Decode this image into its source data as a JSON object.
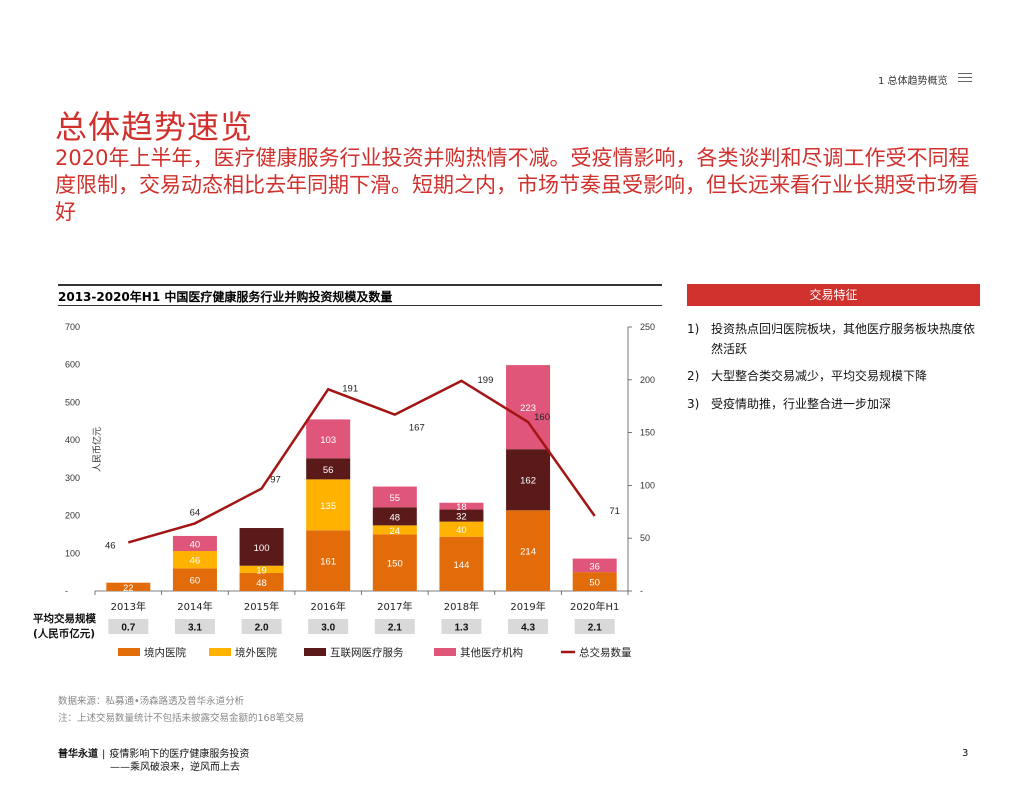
{
  "header": {
    "section": "1 总体趋势概览"
  },
  "title": "总体趋势速览",
  "subtitle": "2020年上半年，医疗健康服务行业投资并购热情不减。受疫情影响，各类谈判和尽调工作受不同程度限制，交易动态相比去年同期下滑。短期之内，市场节奏虽受影响，但长远来看行业长期受市场看好",
  "chart_data": {
    "type": "bar",
    "title": "2013-2020年H1 中国医疗健康服务行业并购投资规模及数量",
    "ylabel": "人民币亿元",
    "ylim": [
      0,
      700
    ],
    "y2lim": [
      0,
      250
    ],
    "y_ticks": [
      "-",
      "100",
      "200",
      "300",
      "400",
      "500",
      "600",
      "700"
    ],
    "y2_ticks": [
      "-",
      "50",
      "100",
      "150",
      "200",
      "250"
    ],
    "categories": [
      "2013年",
      "2014年",
      "2015年",
      "2016年",
      "2017年",
      "2018年",
      "2019年",
      "2020年H1"
    ],
    "series": [
      {
        "name": "境内医院",
        "color": "#e36c0a",
        "values": [
          22,
          60,
          48,
          161,
          150,
          144,
          214,
          50
        ]
      },
      {
        "name": "境外医院",
        "color": "#ffb300",
        "values": [
          0,
          46,
          19,
          135,
          24,
          40,
          0,
          0
        ]
      },
      {
        "name": "互联网医疗服务",
        "color": "#5a1a1a",
        "values": [
          0,
          0,
          100,
          56,
          48,
          32,
          162,
          0
        ]
      },
      {
        "name": "其他医疗机构",
        "color": "#e0557a",
        "values": [
          0,
          40,
          0,
          103,
          55,
          18,
          223,
          36
        ]
      }
    ],
    "line": {
      "name": "总交易数量",
      "color": "#a31515",
      "values": [
        46,
        64,
        97,
        191,
        167,
        199,
        160,
        71
      ]
    },
    "avg_label": "平均交易规模",
    "avg_unit": "(人民币亿元)",
    "avg_values": [
      "0.7",
      "3.1",
      "2.0",
      "3.0",
      "2.1",
      "1.3",
      "4.3",
      "2.1"
    ]
  },
  "panel": {
    "header": "交易特征",
    "items": [
      {
        "num": "1)",
        "text": "投资热点回归医院板块，其他医疗服务板块热度依然活跃"
      },
      {
        "num": "2)",
        "text": "大型整合类交易减少，平均交易规模下降"
      },
      {
        "num": "3)",
        "text": "受疫情助推，行业整合进一步加深"
      }
    ]
  },
  "notes": {
    "source": "数据来源：私募通•汤森路透及普华永道分析",
    "note": "注：上述交易数量统计不包括未披露交易金额的168笔交易"
  },
  "footer": {
    "brand": "普华永道",
    "sep": "|",
    "line1": "疫情影响下的医疗健康服务投资",
    "line2": "——乘风破浪来，逆风而上去",
    "page": "3"
  }
}
